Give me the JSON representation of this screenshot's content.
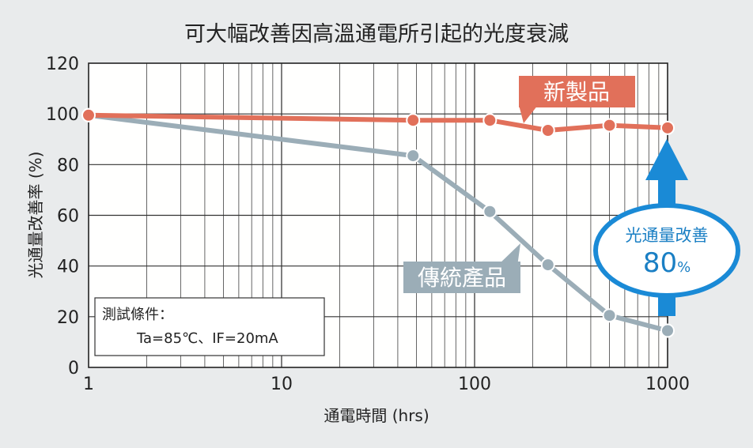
{
  "chart_data": {
    "type": "line",
    "title": "可大幅改善因高溫通電所引起的光度衰減",
    "xlabel": "通電時間 (hrs)",
    "ylabel": "光通量改善率 (%)",
    "x_scale": "log",
    "xlim": [
      1,
      1000
    ],
    "ylim": [
      0,
      120
    ],
    "x_ticks": [
      "1",
      "10",
      "100",
      "1000"
    ],
    "y_ticks": [
      "0",
      "20",
      "40",
      "60",
      "80",
      "100",
      "120"
    ],
    "grid": true,
    "series": [
      {
        "name": "新製品",
        "color": "#e1705a",
        "x": [
          1,
          48,
          120,
          240,
          500,
          1000
        ],
        "y": [
          99.5,
          97.5,
          97.5,
          93.5,
          95.5,
          94.5
        ]
      },
      {
        "name": "傳統產品",
        "color": "#9badb7",
        "x": [
          1,
          48,
          120,
          240,
          500,
          1000
        ],
        "y": [
          99.5,
          83.5,
          61.5,
          40.5,
          20.5,
          14.5
        ]
      }
    ],
    "conditions": {
      "line1": "測試條件：",
      "line2": "Ta=85℃、IF=20mA"
    },
    "improvement_badge": {
      "title": "光通量改善",
      "value": "80",
      "unit": "%",
      "color": "#1a8ad6"
    }
  }
}
